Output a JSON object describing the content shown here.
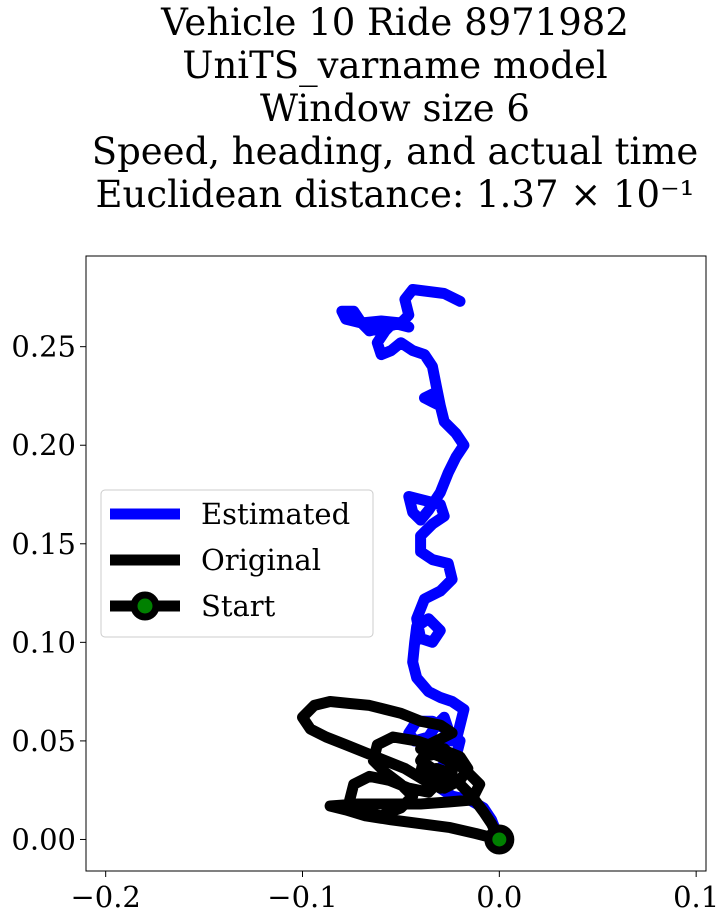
{
  "chart_data": {
    "type": "line",
    "title_lines": [
      "Vehicle 10 Ride 8971982",
      "UniTS_varname model",
      "Window size 6",
      "Speed, heading, and actual time",
      "Euclidean distance: 1.37 × 10⁻¹"
    ],
    "xlabel": "",
    "ylabel": "",
    "xlim": [
      -0.21,
      0.105
    ],
    "ylim": [
      -0.016,
      0.296
    ],
    "x_ticks": [
      -0.2,
      -0.1,
      0.0,
      0.1
    ],
    "x_tick_labels": [
      "−0.2",
      "−0.1",
      "0.0",
      "0.1"
    ],
    "y_ticks": [
      0.0,
      0.05,
      0.1,
      0.15,
      0.2,
      0.25
    ],
    "y_tick_labels": [
      "0.00",
      "0.05",
      "0.10",
      "0.15",
      "0.20",
      "0.25"
    ],
    "grid": false,
    "legend_placement": "center-left",
    "series": [
      {
        "name": "Estimated",
        "color": "#0000ff",
        "points": [
          [
            0.0,
            0.0
          ],
          [
            -0.004,
            0.01
          ],
          [
            -0.008,
            0.016
          ],
          [
            -0.015,
            0.02
          ],
          [
            -0.024,
            0.022
          ],
          [
            -0.03,
            0.026
          ],
          [
            -0.034,
            0.033
          ],
          [
            -0.028,
            0.038
          ],
          [
            -0.022,
            0.042
          ],
          [
            -0.02,
            0.05
          ],
          [
            -0.026,
            0.055
          ],
          [
            -0.034,
            0.06
          ],
          [
            -0.042,
            0.06
          ],
          [
            -0.046,
            0.054
          ],
          [
            -0.043,
            0.05
          ],
          [
            -0.036,
            0.052
          ],
          [
            -0.032,
            0.058
          ],
          [
            -0.028,
            0.062
          ],
          [
            -0.026,
            0.056
          ],
          [
            -0.026,
            0.05
          ],
          [
            -0.022,
            0.05
          ],
          [
            -0.02,
            0.058
          ],
          [
            -0.018,
            0.066
          ],
          [
            -0.024,
            0.07
          ],
          [
            -0.03,
            0.072
          ],
          [
            -0.036,
            0.075
          ],
          [
            -0.042,
            0.082
          ],
          [
            -0.044,
            0.09
          ],
          [
            -0.043,
            0.1
          ],
          [
            -0.042,
            0.108
          ],
          [
            -0.036,
            0.112
          ],
          [
            -0.03,
            0.106
          ],
          [
            -0.034,
            0.1
          ],
          [
            -0.04,
            0.102
          ],
          [
            -0.042,
            0.112
          ],
          [
            -0.038,
            0.122
          ],
          [
            -0.03,
            0.126
          ],
          [
            -0.024,
            0.132
          ],
          [
            -0.026,
            0.14
          ],
          [
            -0.034,
            0.142
          ],
          [
            -0.04,
            0.146
          ],
          [
            -0.04,
            0.154
          ],
          [
            -0.034,
            0.16
          ],
          [
            -0.028,
            0.164
          ],
          [
            -0.03,
            0.17
          ],
          [
            -0.038,
            0.172
          ],
          [
            -0.046,
            0.174
          ],
          [
            -0.044,
            0.166
          ],
          [
            -0.04,
            0.162
          ],
          [
            -0.036,
            0.167
          ],
          [
            -0.03,
            0.176
          ],
          [
            -0.026,
            0.186
          ],
          [
            -0.022,
            0.194
          ],
          [
            -0.018,
            0.2
          ],
          [
            -0.022,
            0.206
          ],
          [
            -0.028,
            0.212
          ],
          [
            -0.03,
            0.22
          ],
          [
            -0.034,
            0.222
          ],
          [
            -0.038,
            0.224
          ],
          [
            -0.034,
            0.226
          ],
          [
            -0.03,
            0.22
          ],
          [
            -0.032,
            0.23
          ],
          [
            -0.034,
            0.24
          ],
          [
            -0.038,
            0.246
          ],
          [
            -0.044,
            0.248
          ],
          [
            -0.05,
            0.252
          ],
          [
            -0.055,
            0.248
          ],
          [
            -0.06,
            0.246
          ],
          [
            -0.062,
            0.252
          ],
          [
            -0.058,
            0.258
          ],
          [
            -0.054,
            0.262
          ],
          [
            -0.046,
            0.26
          ],
          [
            -0.05,
            0.262
          ],
          [
            -0.06,
            0.263
          ],
          [
            -0.07,
            0.262
          ],
          [
            -0.078,
            0.264
          ],
          [
            -0.08,
            0.268
          ],
          [
            -0.074,
            0.268
          ],
          [
            -0.07,
            0.262
          ],
          [
            -0.066,
            0.258
          ],
          [
            -0.058,
            0.26
          ],
          [
            -0.05,
            0.262
          ],
          [
            -0.046,
            0.266
          ],
          [
            -0.048,
            0.274
          ],
          [
            -0.044,
            0.279
          ],
          [
            -0.036,
            0.278
          ],
          [
            -0.028,
            0.277
          ],
          [
            -0.02,
            0.273
          ]
        ]
      },
      {
        "name": "Original",
        "color": "#000000",
        "points": [
          [
            0.0,
            0.0
          ],
          [
            -0.012,
            0.003
          ],
          [
            -0.025,
            0.006
          ],
          [
            -0.04,
            0.008
          ],
          [
            -0.055,
            0.01
          ],
          [
            -0.068,
            0.012
          ],
          [
            -0.078,
            0.015
          ],
          [
            -0.086,
            0.017
          ],
          [
            -0.072,
            0.018
          ],
          [
            -0.056,
            0.018
          ],
          [
            -0.04,
            0.018
          ],
          [
            -0.026,
            0.019
          ],
          [
            -0.014,
            0.02
          ],
          [
            -0.01,
            0.028
          ],
          [
            -0.018,
            0.036
          ],
          [
            -0.03,
            0.042
          ],
          [
            -0.04,
            0.046
          ],
          [
            -0.032,
            0.05
          ],
          [
            -0.024,
            0.054
          ],
          [
            -0.03,
            0.058
          ],
          [
            -0.04,
            0.06
          ],
          [
            -0.05,
            0.064
          ],
          [
            -0.058,
            0.066
          ],
          [
            -0.066,
            0.068
          ],
          [
            -0.076,
            0.069
          ],
          [
            -0.086,
            0.07
          ],
          [
            -0.094,
            0.068
          ],
          [
            -0.1,
            0.062
          ],
          [
            -0.096,
            0.056
          ],
          [
            -0.088,
            0.052
          ],
          [
            -0.078,
            0.048
          ],
          [
            -0.068,
            0.044
          ],
          [
            -0.058,
            0.04
          ],
          [
            -0.048,
            0.036
          ],
          [
            -0.038,
            0.03
          ],
          [
            -0.028,
            0.026
          ],
          [
            -0.02,
            0.03
          ],
          [
            -0.016,
            0.036
          ],
          [
            -0.02,
            0.042
          ],
          [
            -0.03,
            0.046
          ],
          [
            -0.042,
            0.05
          ],
          [
            -0.054,
            0.052
          ],
          [
            -0.062,
            0.048
          ],
          [
            -0.064,
            0.04
          ],
          [
            -0.058,
            0.034
          ],
          [
            -0.05,
            0.028
          ],
          [
            -0.044,
            0.022
          ],
          [
            -0.05,
            0.016
          ],
          [
            -0.06,
            0.012
          ],
          [
            -0.07,
            0.014
          ],
          [
            -0.076,
            0.02
          ],
          [
            -0.074,
            0.028
          ],
          [
            -0.066,
            0.032
          ],
          [
            -0.056,
            0.03
          ],
          [
            -0.046,
            0.026
          ],
          [
            -0.036,
            0.024
          ],
          [
            -0.03,
            0.03
          ],
          [
            -0.034,
            0.036
          ],
          [
            -0.04,
            0.04
          ],
          [
            -0.036,
            0.046
          ],
          [
            -0.028,
            0.046
          ],
          [
            -0.022,
            0.04
          ],
          [
            -0.026,
            0.034
          ],
          [
            -0.034,
            0.03
          ],
          [
            -0.04,
            0.034
          ],
          [
            -0.038,
            0.042
          ],
          [
            -0.03,
            0.044
          ],
          [
            -0.024,
            0.038
          ],
          [
            -0.024,
            0.03
          ],
          [
            -0.03,
            0.026
          ],
          [
            -0.034,
            0.03
          ],
          [
            -0.032,
            0.036
          ],
          [
            -0.026,
            0.034
          ],
          [
            -0.02,
            0.028
          ],
          [
            -0.014,
            0.022
          ],
          [
            -0.008,
            0.014
          ],
          [
            -0.004,
            0.008
          ],
          [
            0.0,
            0.0
          ]
        ]
      }
    ],
    "markers": [
      {
        "name": "Start",
        "x": 0.0,
        "y": 0.0,
        "edge_color": "#000000",
        "face_color": "#008000"
      }
    ],
    "legend": [
      {
        "label": "Estimated",
        "color": "#0000ff",
        "style": "line"
      },
      {
        "label": "Original",
        "color": "#000000",
        "style": "line"
      },
      {
        "label": "Start",
        "color": "#000000",
        "style": "line-marker",
        "marker_face": "#008000"
      }
    ]
  }
}
